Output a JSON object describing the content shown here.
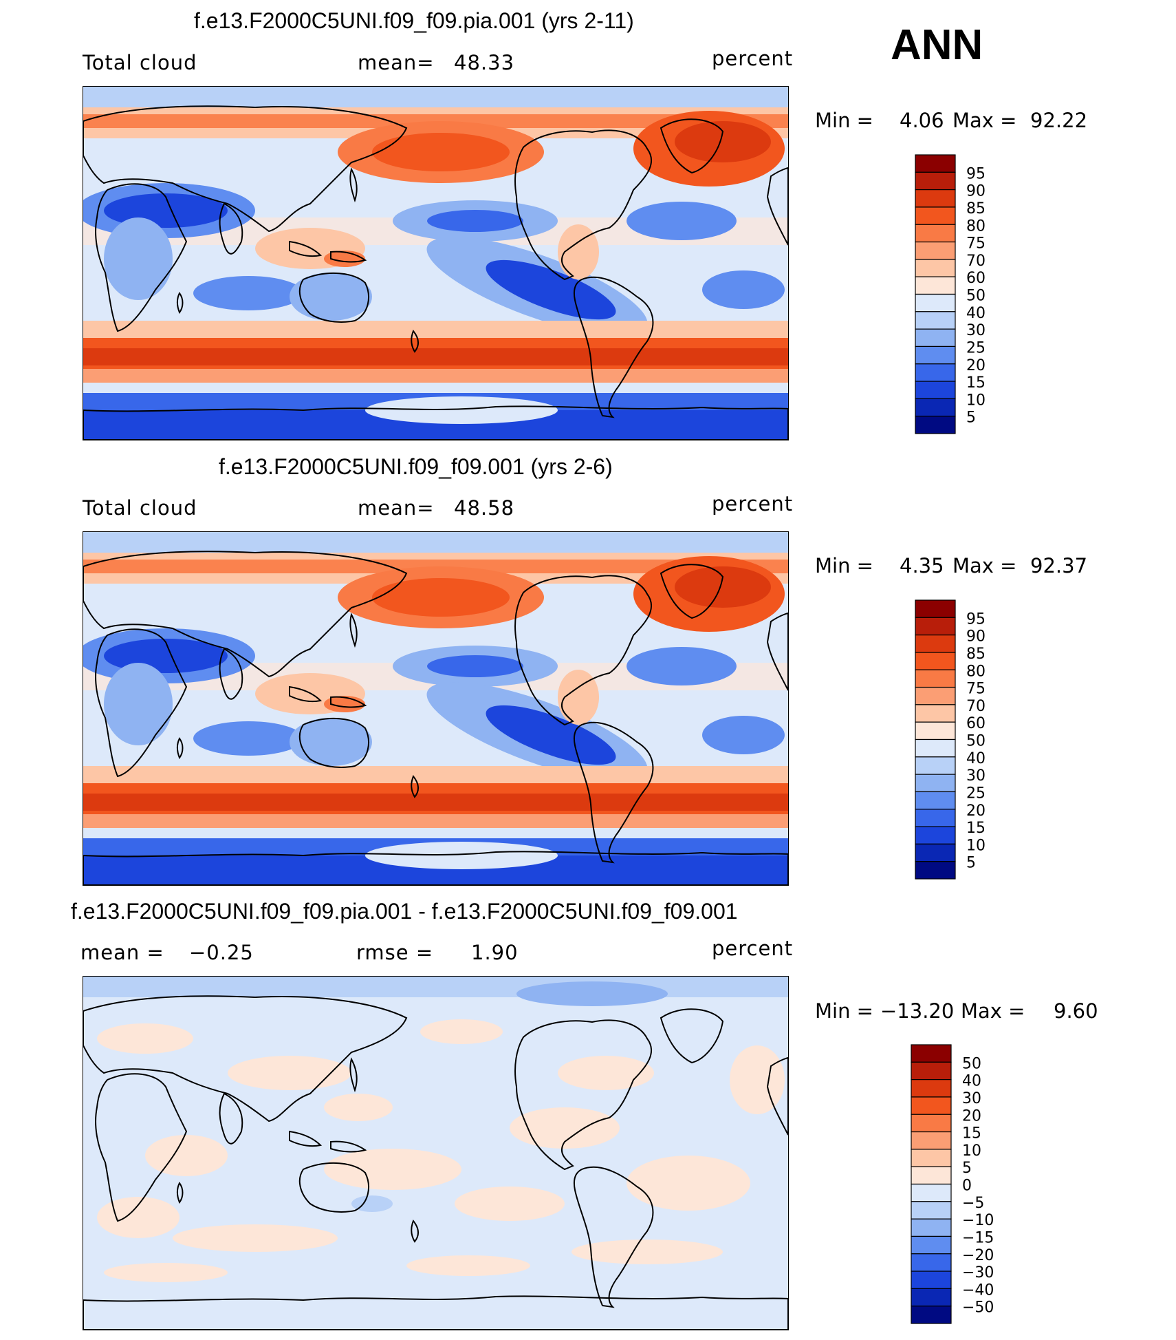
{
  "season": "ANN",
  "panels": [
    {
      "title": "f.e13.F2000C5UNI.f09_f09.pia.001 (yrs 2-11)",
      "left_label": "Total cloud",
      "stat_label": "mean=",
      "stat_value": "48.33",
      "units": "percent",
      "min_label": "Min =",
      "min_value": "4.06",
      "max_label": "Max =",
      "max_value": "92.22",
      "colorbar_ticks": [
        "95",
        "90",
        "85",
        "80",
        "75",
        "70",
        "60",
        "50",
        "40",
        "30",
        "25",
        "20",
        "15",
        "10",
        "5"
      ]
    },
    {
      "title": "f.e13.F2000C5UNI.f09_f09.001 (yrs 2-6)",
      "left_label": "Total cloud",
      "stat_label": "mean=",
      "stat_value": "48.58",
      "units": "percent",
      "min_label": "Min =",
      "min_value": "4.35",
      "max_label": "Max =",
      "max_value": "92.37",
      "colorbar_ticks": [
        "95",
        "90",
        "85",
        "80",
        "75",
        "70",
        "60",
        "50",
        "40",
        "30",
        "25",
        "20",
        "15",
        "10",
        "5"
      ]
    },
    {
      "title": "f.e13.F2000C5UNI.f09_f09.pia.001 - f.e13.F2000C5UNI.f09_f09.001",
      "left_label": "mean =",
      "left_value": "−0.25",
      "stat_label": "rmse =",
      "stat_value": "1.90",
      "units": "percent",
      "min_label": "Min =",
      "min_value": "−13.20",
      "max_label": "Max =",
      "max_value": "9.60",
      "colorbar_ticks": [
        "50",
        "40",
        "30",
        "20",
        "15",
        "10",
        "5",
        "0",
        "−5",
        "−10",
        "−15",
        "−20",
        "−30",
        "−40",
        "−50"
      ]
    }
  ],
  "colors": {
    "scale": [
      "#8b0000",
      "#b81e0a",
      "#dc3a0f",
      "#f2561e",
      "#f97a45",
      "#fb9e74",
      "#fdc6a6",
      "#fde6d8",
      "#dde9fa",
      "#b8d1f7",
      "#8fb3f2",
      "#5f8df0",
      "#3867ea",
      "#1c45dc",
      "#0a27b4",
      "#000a82"
    ],
    "coast": "#000000"
  }
}
